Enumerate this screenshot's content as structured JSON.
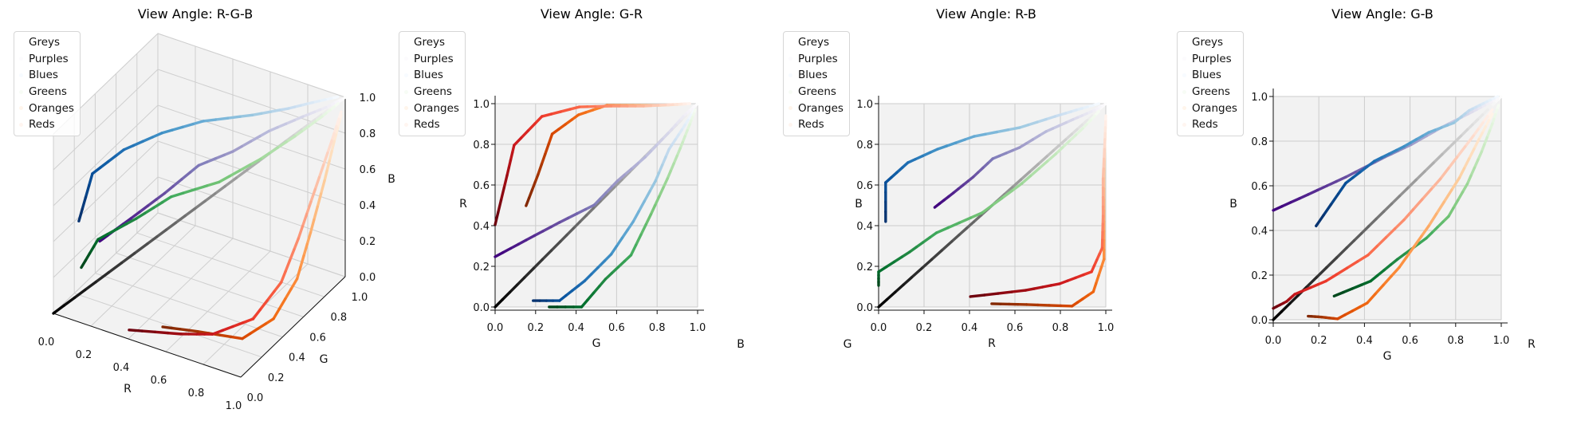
{
  "chart_data": {
    "type": "line",
    "legend_placement": "upper-left",
    "series": [
      {
        "name": "Greys",
        "points": [
          [
            1,
            1,
            1
          ],
          [
            0.941,
            0.941,
            0.941
          ],
          [
            0.851,
            0.851,
            0.851
          ],
          [
            0.741,
            0.741,
            0.741
          ],
          [
            0.588,
            0.588,
            0.588
          ],
          [
            0.451,
            0.451,
            0.451
          ],
          [
            0.322,
            0.322,
            0.322
          ],
          [
            0.145,
            0.145,
            0.145
          ],
          [
            0,
            0,
            0
          ]
        ]
      },
      {
        "name": "Purples",
        "points": [
          [
            0.988,
            0.984,
            0.992
          ],
          [
            0.937,
            0.929,
            0.961
          ],
          [
            0.855,
            0.855,
            0.922
          ],
          [
            0.737,
            0.741,
            0.863
          ],
          [
            0.62,
            0.604,
            0.784
          ],
          [
            0.502,
            0.49,
            0.729
          ],
          [
            0.416,
            0.318,
            0.639
          ],
          [
            0.329,
            0.153,
            0.561
          ],
          [
            0.247,
            0,
            0.49
          ]
        ]
      },
      {
        "name": "Blues",
        "points": [
          [
            0.969,
            0.984,
            1
          ],
          [
            0.871,
            0.922,
            0.969
          ],
          [
            0.776,
            0.859,
            0.937
          ],
          [
            0.62,
            0.792,
            0.882
          ],
          [
            0.42,
            0.682,
            0.839
          ],
          [
            0.259,
            0.573,
            0.776
          ],
          [
            0.129,
            0.443,
            0.71
          ],
          [
            0.031,
            0.318,
            0.612
          ],
          [
            0.031,
            0.188,
            0.42
          ]
        ]
      },
      {
        "name": "Greens",
        "points": [
          [
            0.969,
            0.988,
            0.961
          ],
          [
            0.898,
            0.961,
            0.878
          ],
          [
            0.78,
            0.914,
            0.753
          ],
          [
            0.631,
            0.851,
            0.608
          ],
          [
            0.455,
            0.769,
            0.463
          ],
          [
            0.255,
            0.671,
            0.365
          ],
          [
            0.137,
            0.545,
            0.271
          ],
          [
            0,
            0.427,
            0.173
          ],
          [
            0,
            0.267,
            0.106
          ]
        ]
      },
      {
        "name": "Oranges",
        "points": [
          [
            1,
            0.961,
            0.922
          ],
          [
            0.996,
            0.902,
            0.808
          ],
          [
            0.992,
            0.816,
            0.635
          ],
          [
            0.992,
            0.682,
            0.42
          ],
          [
            0.992,
            0.553,
            0.235
          ],
          [
            0.945,
            0.412,
            0.075
          ],
          [
            0.851,
            0.282,
            0.004
          ],
          [
            0.651,
            0.212,
            0.012
          ],
          [
            0.498,
            0.153,
            0.016
          ]
        ]
      },
      {
        "name": "Reds",
        "points": [
          [
            1,
            0.961,
            0.941
          ],
          [
            0.996,
            0.878,
            0.824
          ],
          [
            0.988,
            0.733,
            0.631
          ],
          [
            0.988,
            0.573,
            0.447
          ],
          [
            0.984,
            0.416,
            0.29
          ],
          [
            0.937,
            0.231,
            0.173
          ],
          [
            0.796,
            0.094,
            0.114
          ],
          [
            0.647,
            0.059,
            0.082
          ],
          [
            0.404,
            0,
            0.051
          ]
        ]
      }
    ],
    "views": [
      {
        "title": "View Angle: R-G-B",
        "xlabel": "R",
        "ylabel": "G",
        "zlabel": "B",
        "projection": "3d"
      },
      {
        "title": "View Angle: G-R",
        "xlabel": "G",
        "ylabel": "R",
        "zlabel": "B",
        "projection": "G-R"
      },
      {
        "title": "View Angle: R-B",
        "xlabel": "R",
        "ylabel": "B",
        "zlabel": "G",
        "projection": "R-B"
      },
      {
        "title": "View Angle: G-B",
        "xlabel": "G",
        "ylabel": "B",
        "zlabel": "R",
        "projection": "G-B"
      }
    ],
    "ticks": [
      "0.0",
      "0.2",
      "0.4",
      "0.6",
      "0.8",
      "1.0"
    ],
    "xlim": [
      0,
      1
    ],
    "ylim": [
      0,
      1
    ],
    "zlim": [
      0,
      1
    ]
  }
}
